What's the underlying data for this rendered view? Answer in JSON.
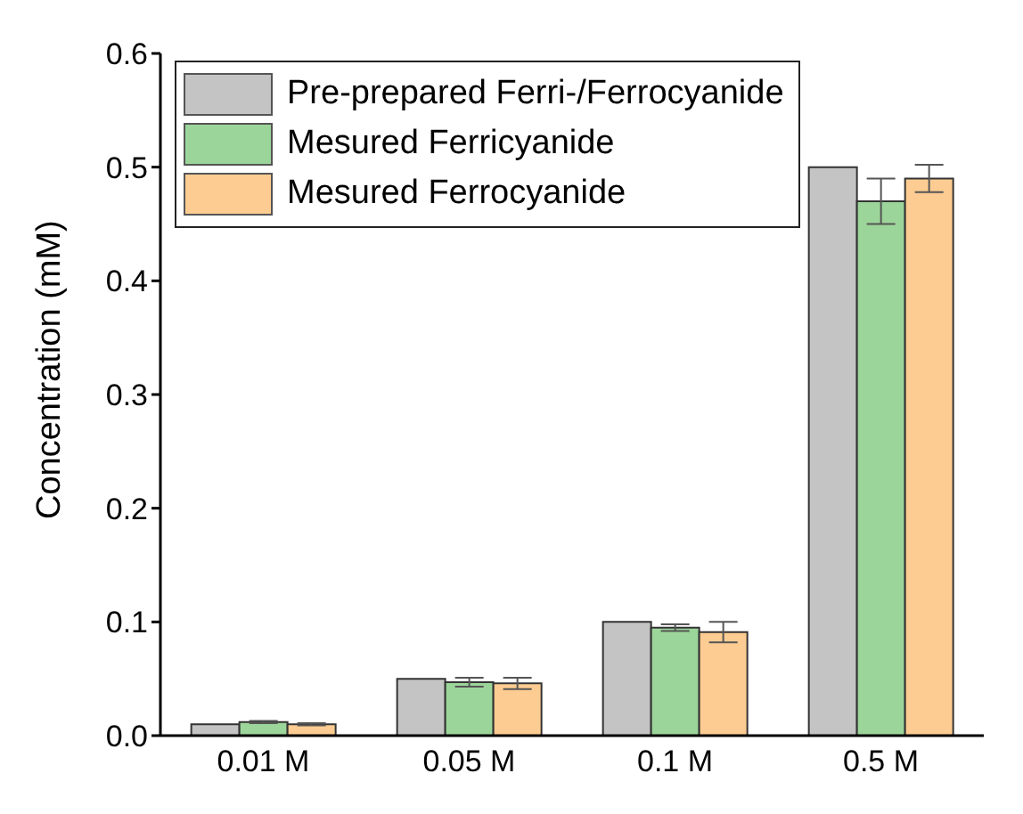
{
  "chart_data": {
    "type": "bar",
    "ylabel": "Concentration (mM)",
    "categories": [
      "0.01 M",
      "0.05 M",
      "0.1 M",
      "0.5 M"
    ],
    "series": [
      {
        "name": "Pre-prepared Ferri-/Ferrocyanide",
        "color": "#c4c4c4",
        "values": [
          0.01,
          0.05,
          0.1,
          0.5
        ]
      },
      {
        "name": "Mesured Ferricyanide",
        "color": "#9cd59a",
        "values": [
          0.012,
          0.047,
          0.095,
          0.47
        ],
        "errors": [
          0.001,
          0.004,
          0.003,
          0.02
        ]
      },
      {
        "name": "Mesured Ferrocyanide",
        "color": "#fdcc92",
        "values": [
          0.01,
          0.046,
          0.091,
          0.49
        ],
        "errors": [
          0.001,
          0.005,
          0.009,
          0.012
        ]
      }
    ],
    "ylim": [
      0,
      0.6
    ],
    "yticks": [
      {
        "value": 0,
        "label": "0.0"
      },
      {
        "value": 0.1,
        "label": "0.1"
      },
      {
        "value": 0.2,
        "label": "0.2"
      },
      {
        "value": 0.3,
        "label": "0.3"
      },
      {
        "value": 0.4,
        "label": "0.4"
      },
      {
        "value": 0.5,
        "label": "0.5"
      },
      {
        "value": 0.6,
        "label": "0.6"
      }
    ],
    "grid": false,
    "legend": "top left"
  }
}
